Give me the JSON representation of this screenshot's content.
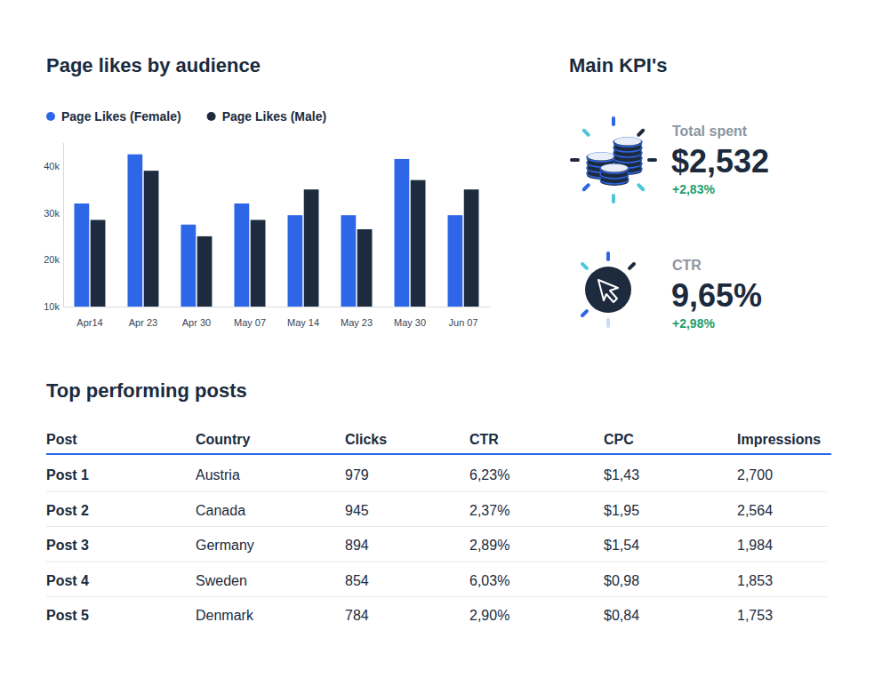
{
  "chart_data": {
    "type": "bar",
    "title": "Page likes by audience",
    "categories": [
      "Apr14",
      "Apr 23",
      "Apr 30",
      "May 07",
      "May 14",
      "May 23",
      "May 30",
      "Jun 07"
    ],
    "series": [
      {
        "name": "Page Likes (Female)",
        "color": "#2d66e6",
        "values": [
          32000,
          42500,
          27500,
          32000,
          29500,
          29500,
          41500,
          29500
        ]
      },
      {
        "name": "Page Likes (Male)",
        "color": "#1e2b3e",
        "values": [
          28500,
          39000,
          25000,
          28500,
          35000,
          26500,
          37000,
          35000
        ]
      }
    ],
    "ylim": [
      10000,
      45000
    ],
    "yticks": [
      {
        "value": 10000,
        "label": "10k"
      },
      {
        "value": 20000,
        "label": "20k"
      },
      {
        "value": 30000,
        "label": "30k"
      },
      {
        "value": 40000,
        "label": "40k"
      }
    ],
    "grid": false,
    "legend": "top-left"
  },
  "kpis": {
    "title": "Main KPI's",
    "items": [
      {
        "label": "Total spent",
        "value": "$2,532",
        "change": "+2,83%"
      },
      {
        "label": "CTR",
        "value": "9,65%",
        "change": "+2,98%"
      }
    ]
  },
  "table": {
    "title": "Top performing posts",
    "columns": [
      "Post",
      "Country",
      "Clicks",
      "CTR",
      "CPC",
      "Impressions"
    ],
    "rows": [
      [
        "Post 1",
        "Austria",
        "979",
        "6,23%",
        "$1,43",
        "2,700"
      ],
      [
        "Post 2",
        "Canada",
        "945",
        "2,37%",
        "$1,95",
        "2,564"
      ],
      [
        "Post 3",
        "Germany",
        "894",
        "2,89%",
        "$1,54",
        "1,984"
      ],
      [
        "Post 4",
        "Sweden",
        "854",
        "6,03%",
        "$0,98",
        "1,853"
      ],
      [
        "Post 5",
        "Denmark",
        "784",
        "2,90%",
        "$0,84",
        "1,753"
      ]
    ]
  }
}
